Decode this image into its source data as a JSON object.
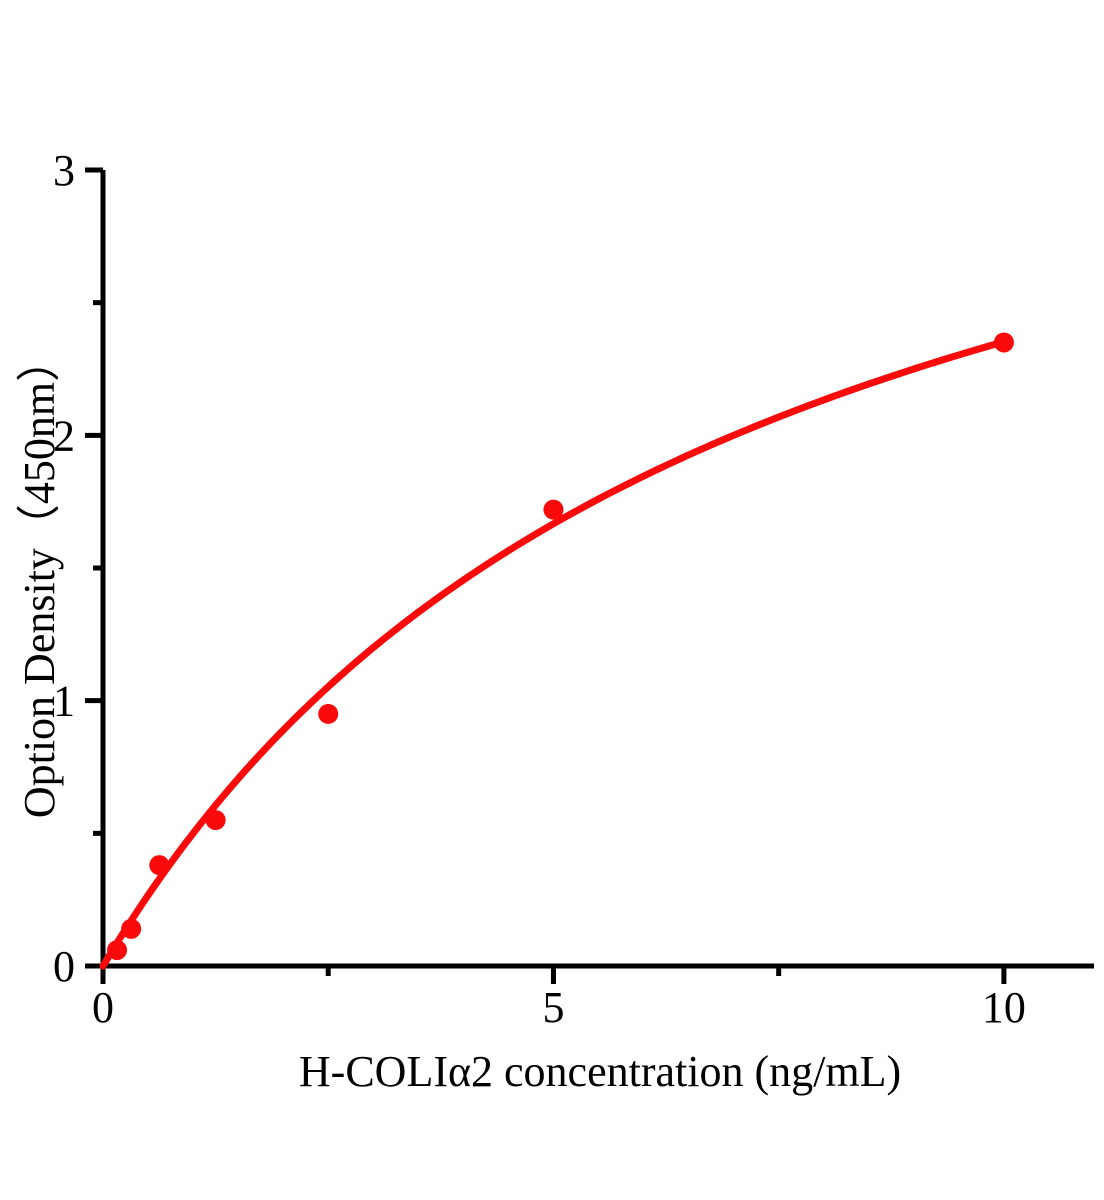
{
  "chart_data": {
    "type": "scatter",
    "title": "",
    "xlabel": "H-COLIα2 concentration (ng/mL)",
    "ylabel": "Option Density（450nm）",
    "xlim": [
      0,
      11
    ],
    "ylim": [
      0,
      3
    ],
    "grid": false,
    "legend": false,
    "background_color": "#ffffff",
    "axis_color": "#000000",
    "accent_color": "#fa0a0a",
    "x_axis": {
      "major_ticks": [
        0,
        5,
        10
      ],
      "minor_ticks": [
        2.5,
        7.5
      ],
      "tick_labels": [
        "0",
        "5",
        "10"
      ]
    },
    "y_axis": {
      "major_ticks": [
        0,
        1,
        2,
        3
      ],
      "minor_ticks": [
        0.5,
        1.5,
        2.5
      ],
      "tick_labels": [
        "0",
        "1",
        "2",
        "3"
      ]
    },
    "series": [
      {
        "name": "standard-curve-points",
        "type": "scatter",
        "color": "#fa0a0a",
        "points": [
          {
            "x": 0.156,
            "y": 0.06
          },
          {
            "x": 0.3125,
            "y": 0.14
          },
          {
            "x": 0.625,
            "y": 0.38
          },
          {
            "x": 1.25,
            "y": 0.55
          },
          {
            "x": 2.5,
            "y": 0.95
          },
          {
            "x": 5,
            "y": 1.72
          },
          {
            "x": 10,
            "y": 2.35
          }
        ]
      },
      {
        "name": "fitted-curve",
        "type": "line",
        "color": "#fa0a0a",
        "fit_model": "y = a*x/(b + x)",
        "a": 4.0,
        "b": 7.0,
        "x_range": [
          0,
          10
        ]
      }
    ]
  }
}
